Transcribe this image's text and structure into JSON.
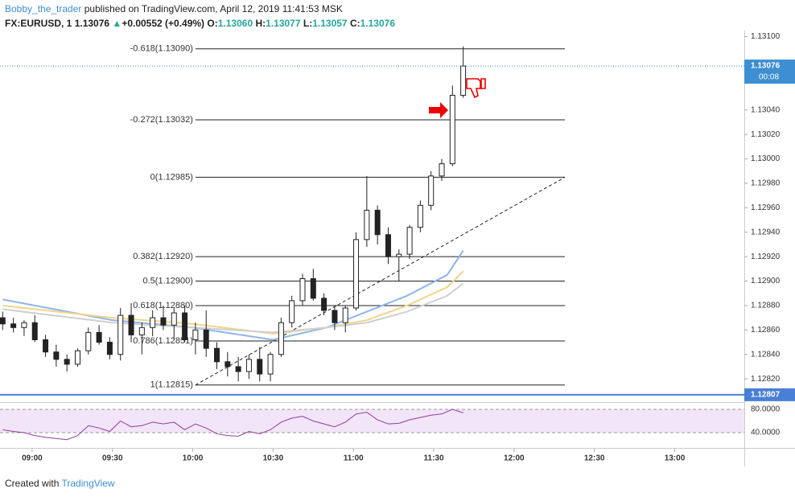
{
  "header": {
    "author": "Bobby_the_trader",
    "published": "published on TradingView.com, April 12, 2019 11:41:53 MSK",
    "symbol": "FX:EURUSD, 1",
    "last": "1.13076",
    "arrow": "▲",
    "change": "+0.00552 (+0.49%)",
    "ohlc": [
      {
        "k": "O:",
        "v": "1.13060"
      },
      {
        "k": "H:",
        "v": "1.13077"
      },
      {
        "k": "L:",
        "v": "1.13057"
      },
      {
        "k": "C:",
        "v": "1.13076"
      }
    ]
  },
  "footer": {
    "prefix": "Created with",
    "brand": "TradingView"
  },
  "chart_data": {
    "type": "candlestick",
    "x": [
      "08:49",
      "08:53",
      "08:57",
      "09:01",
      "09:05",
      "09:09",
      "09:13",
      "09:17",
      "09:21",
      "09:25",
      "09:29",
      "09:33",
      "09:37",
      "09:41",
      "09:45",
      "09:49",
      "09:53",
      "09:57",
      "10:01",
      "10:05",
      "10:09",
      "10:13",
      "10:17",
      "10:21",
      "10:25",
      "10:29",
      "10:33",
      "10:37",
      "10:41",
      "10:45",
      "10:49",
      "10:53",
      "10:57",
      "11:01",
      "11:05",
      "11:09",
      "11:13",
      "11:17",
      "11:21",
      "11:25",
      "11:29",
      "11:33",
      "11:37",
      "11:41"
    ],
    "open": [
      1.1287,
      1.12865,
      1.12862,
      1.12866,
      1.12852,
      1.12842,
      1.12836,
      1.12832,
      1.12843,
      1.12858,
      1.1285,
      1.1284,
      1.12872,
      1.12856,
      1.12862,
      1.1287,
      1.12864,
      1.12874,
      1.12852,
      1.1286,
      1.12845,
      1.12834,
      1.1283,
      1.12826,
      1.12836,
      1.12824,
      1.1284,
      1.12866,
      1.12884,
      1.12902,
      1.12886,
      1.12876,
      1.12866,
      1.12878,
      1.12934,
      1.12958,
      1.12938,
      1.1292,
      1.12922,
      1.12944,
      1.12962,
      1.12986,
      1.12996,
      1.13052
    ],
    "high": [
      1.12875,
      1.1287,
      1.12868,
      1.12872,
      1.12856,
      1.12848,
      1.1284,
      1.12845,
      1.12862,
      1.12864,
      1.12854,
      1.12878,
      1.12882,
      1.12866,
      1.12876,
      1.1288,
      1.12878,
      1.1288,
      1.12866,
      1.12876,
      1.1285,
      1.12842,
      1.12838,
      1.1284,
      1.12846,
      1.12842,
      1.1287,
      1.12888,
      1.12906,
      1.1291,
      1.1289,
      1.1288,
      1.1288,
      1.1294,
      1.12986,
      1.12962,
      1.12944,
      1.12926,
      1.12946,
      1.12966,
      1.1299,
      1.13,
      1.1306,
      1.13092
    ],
    "low": [
      1.1286,
      1.12858,
      1.12855,
      1.1285,
      1.12838,
      1.1283,
      1.12826,
      1.1283,
      1.1284,
      1.12848,
      1.12836,
      1.12835,
      1.1285,
      1.1284,
      1.12855,
      1.1286,
      1.12852,
      1.1285,
      1.1284,
      1.12838,
      1.12828,
      1.12822,
      1.12818,
      1.1282,
      1.12818,
      1.12818,
      1.12838,
      1.12862,
      1.1288,
      1.12884,
      1.12872,
      1.1286,
      1.12858,
      1.12876,
      1.12928,
      1.1293,
      1.12914,
      1.129,
      1.12918,
      1.1294,
      1.12958,
      1.12982,
      1.12994,
      1.1305
    ],
    "close": [
      1.12865,
      1.12862,
      1.12866,
      1.12852,
      1.12842,
      1.12836,
      1.12832,
      1.12843,
      1.12858,
      1.1285,
      1.1284,
      1.12872,
      1.12856,
      1.12862,
      1.1287,
      1.12864,
      1.12874,
      1.12852,
      1.1286,
      1.12845,
      1.12834,
      1.1283,
      1.12826,
      1.12836,
      1.12824,
      1.1284,
      1.12866,
      1.12884,
      1.12902,
      1.12886,
      1.12876,
      1.12866,
      1.12878,
      1.12934,
      1.12958,
      1.12938,
      1.1292,
      1.12922,
      1.12944,
      1.12962,
      1.12986,
      1.12996,
      1.13052,
      1.13076
    ],
    "up_color": "#ffffff",
    "down_color": "#222222",
    "series": [
      {
        "color": "#8fb4ea",
        "x": [
          "08:49",
          "09:30",
          "10:00",
          "10:30",
          "10:50",
          "11:05",
          "11:20",
          "11:35",
          "11:41"
        ],
        "values": [
          1.12885,
          1.12868,
          1.12862,
          1.12852,
          1.12862,
          1.12875,
          1.12888,
          1.12905,
          1.12925
        ]
      },
      {
        "color": "#f0d48a",
        "x": [
          "08:49",
          "09:30",
          "10:00",
          "10:30",
          "10:50",
          "11:05",
          "11:20",
          "11:35",
          "11:41"
        ],
        "values": [
          1.1288,
          1.1287,
          1.12865,
          1.12857,
          1.12862,
          1.12868,
          1.1288,
          1.12895,
          1.12908
        ]
      },
      {
        "color": "#cfcfcf",
        "x": [
          "08:49",
          "09:30",
          "10:00",
          "10:30",
          "10:50",
          "11:05",
          "11:20",
          "11:35",
          "11:41"
        ],
        "values": [
          1.12877,
          1.12866,
          1.12862,
          1.12858,
          1.12862,
          1.12866,
          1.12875,
          1.12888,
          1.12898
        ]
      }
    ],
    "fib": {
      "x": [
        "10:01",
        "12:19"
      ],
      "levels": [
        {
          "label": "-0.618(1.13090)",
          "value": 1.1309
        },
        {
          "label": "-0.272(1.13032)",
          "value": 1.13032
        },
        {
          "label": "0(1.12985)",
          "value": 1.12985
        },
        {
          "label": "0.382(1.12920)",
          "value": 1.1292
        },
        {
          "label": "0.5(1.12900)",
          "value": 1.129
        },
        {
          "label": "0.618(1.12880)",
          "value": 1.1288
        },
        {
          "label": "0.786(1.12851)",
          "value": 1.12851
        },
        {
          "label": "1(1.12815)",
          "value": 1.12815
        }
      ]
    },
    "trendline": {
      "x": [
        "10:01",
        "12:19"
      ],
      "values": [
        1.12815,
        1.12985
      ]
    },
    "price_line": {
      "value": 1.13076,
      "label": "1.13076",
      "timer": "00:08"
    },
    "hline": {
      "value": 1.12807,
      "label": "1.12807",
      "color": "#4a7fd6"
    },
    "xlim": [
      "08:48",
      "13:26"
    ],
    "xticks": [
      "09:00",
      "09:30",
      "10:00",
      "10:30",
      "11:00",
      "11:30",
      "12:00",
      "12:30",
      "13:00"
    ],
    "ylim": [
      1.12801,
      1.13105
    ],
    "yticks": [
      {
        "value": 1.131,
        "label": "1.13100"
      },
      {
        "value": 1.1304,
        "label": "1.13040"
      },
      {
        "value": 1.1302,
        "label": "1.13020"
      },
      {
        "value": 1.13,
        "label": "1.13000"
      },
      {
        "value": 1.1298,
        "label": "1.12980"
      },
      {
        "value": 1.1296,
        "label": "1.12960"
      },
      {
        "value": 1.1294,
        "label": "1.12940"
      },
      {
        "value": 1.1292,
        "label": "1.12920"
      },
      {
        "value": 1.129,
        "label": "1.12900"
      },
      {
        "value": 1.1288,
        "label": "1.12880"
      },
      {
        "value": 1.1286,
        "label": "1.12860"
      },
      {
        "value": 1.1284,
        "label": "1.12840"
      },
      {
        "value": 1.1282,
        "label": "1.12820"
      }
    ],
    "rsi": {
      "color": "#8e3d9e",
      "values": [
        45,
        42,
        40,
        35,
        32,
        30,
        28,
        35,
        52,
        48,
        42,
        60,
        50,
        52,
        58,
        55,
        58,
        45,
        55,
        48,
        38,
        35,
        34,
        42,
        38,
        45,
        58,
        65,
        68,
        60,
        55,
        50,
        58,
        72,
        75,
        62,
        55,
        56,
        62,
        66,
        70,
        72,
        80,
        74
      ],
      "ylim": [
        12.4,
        92.4
      ],
      "yticks": [
        {
          "value": 80,
          "label": "80.0000"
        },
        {
          "value": 40,
          "label": "40.0000"
        }
      ]
    }
  }
}
